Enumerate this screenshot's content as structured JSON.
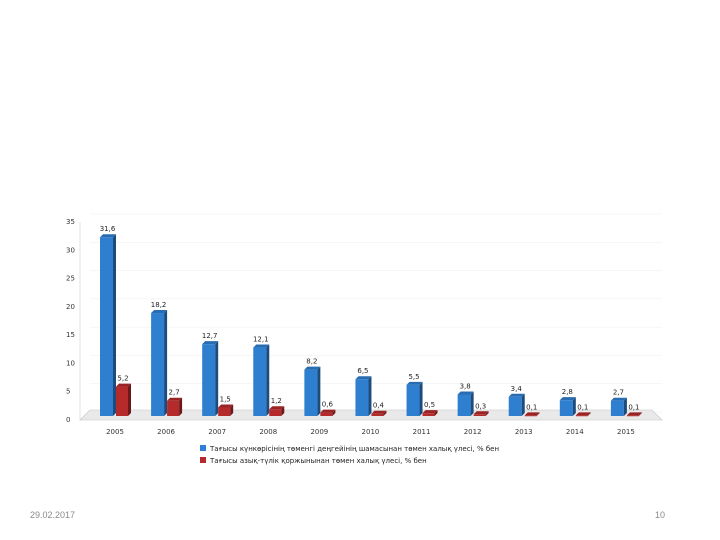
{
  "chart_data": {
    "type": "bar",
    "categories": [
      "2005",
      "2006",
      "2007",
      "2008",
      "2009",
      "2010",
      "2011",
      "2012",
      "2013",
      "2014",
      "2015"
    ],
    "series": [
      {
        "name": "Тағысы күнкөрісінің төменгі деңгейінің шамасынан төмен халық үлесі, % бен",
        "color": "#2f7fd0",
        "values": [
          31.6,
          18.2,
          12.7,
          12.1,
          8.2,
          6.5,
          5.5,
          3.8,
          3.4,
          2.8,
          2.7
        ],
        "labels": [
          "31,6",
          "18,2",
          "12,7",
          "12,1",
          "8,2",
          "6,5",
          "5,5",
          "3,8",
          "3,4",
          "2,8",
          "2,7"
        ]
      },
      {
        "name": "Тағысы азық-түлік қоржынынан төмен халық үлесі, % бен",
        "color": "#b52a2a",
        "values": [
          5.2,
          2.7,
          1.5,
          1.2,
          0.6,
          0.4,
          0.5,
          0.3,
          0.1,
          0.1,
          0.1
        ],
        "labels": [
          "5,2",
          "2,7",
          "1,5",
          "1,2",
          "0,6",
          "0,4",
          "0,5",
          "0,3",
          "0,1",
          "0,1",
          "0,1"
        ]
      }
    ],
    "yticks": [
      "0",
      "5",
      "10",
      "15",
      "20",
      "25",
      "30",
      "35"
    ],
    "ylim": [
      0,
      35
    ],
    "legend_position": "bottom"
  },
  "footer": {
    "date": "29.02.2017",
    "page": "10"
  }
}
